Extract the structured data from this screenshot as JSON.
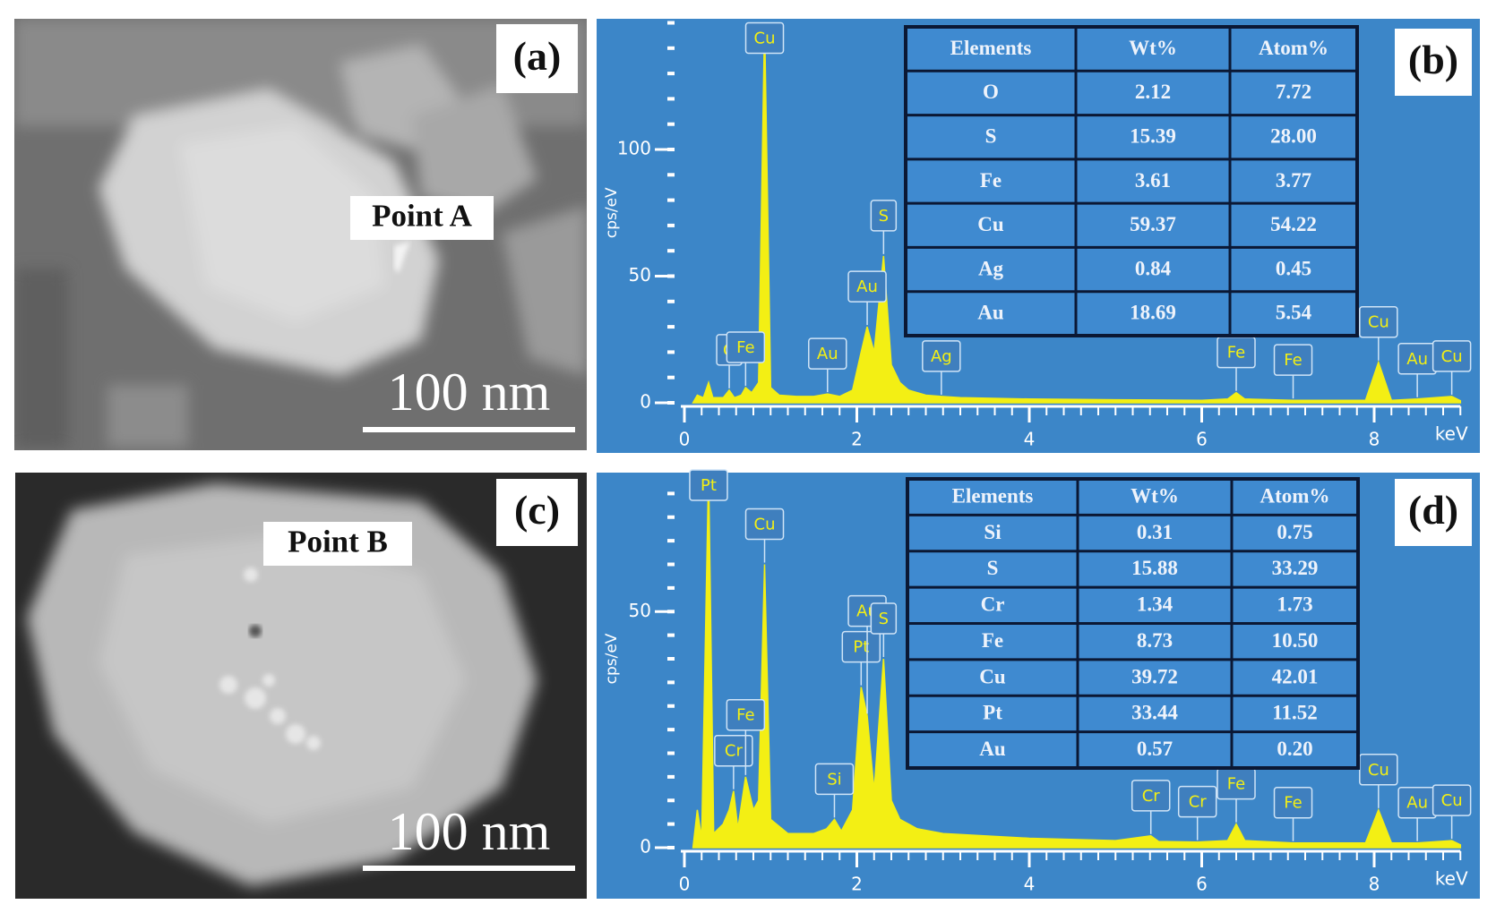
{
  "images": [
    {
      "label": "(a)",
      "point": "Point A",
      "scale_bar": "100 nm"
    },
    {
      "label": "(c)",
      "point": "Point B",
      "scale_bar": "100 nm"
    }
  ],
  "chart_data": [
    {
      "type": "area",
      "panel_label": "(b)",
      "x_label": "keV",
      "y_label": "cps/eV",
      "color": "#f3ef14",
      "xlim": [
        0,
        9
      ],
      "xticks": [
        0,
        2,
        4,
        6,
        8
      ],
      "ylim": [
        0,
        150
      ],
      "yticks": [
        0,
        50,
        100
      ],
      "x": [
        0.1,
        0.15,
        0.22,
        0.28,
        0.33,
        0.45,
        0.52,
        0.58,
        0.66,
        0.71,
        0.78,
        0.86,
        0.93,
        1.0,
        1.1,
        1.3,
        1.5,
        1.66,
        1.8,
        1.95,
        2.05,
        2.12,
        2.2,
        2.31,
        2.4,
        2.5,
        2.6,
        2.8,
        2.98,
        3.2,
        4,
        5,
        6,
        6.3,
        6.4,
        6.5,
        7.06,
        7.9,
        8.05,
        8.2,
        8.5,
        8.9,
        9
      ],
      "values": [
        0,
        3,
        2,
        8,
        2,
        2,
        5,
        2,
        3,
        6,
        4,
        8,
        150,
        6,
        3,
        2.5,
        2.5,
        3.5,
        2.5,
        5,
        20,
        30,
        20,
        58,
        15,
        8,
        5,
        3,
        2.5,
        2,
        1.5,
        1.2,
        1,
        1.5,
        4,
        1.5,
        1,
        1,
        16,
        1,
        1.5,
        2.5,
        0.8
      ],
      "peak_labels": [
        {
          "text": "O",
          "x": 0.52
        },
        {
          "text": "Fe",
          "x": 0.71
        },
        {
          "text": "Cu",
          "x": 0.93
        },
        {
          "text": "Au",
          "x": 1.66
        },
        {
          "text": "Au",
          "x": 2.12
        },
        {
          "text": "S",
          "x": 2.31
        },
        {
          "text": "Ag",
          "x": 2.98
        },
        {
          "text": "Fe",
          "x": 6.4
        },
        {
          "text": "Fe",
          "x": 7.06
        },
        {
          "text": "Cu",
          "x": 8.05
        },
        {
          "text": "Au",
          "x": 8.5
        },
        {
          "text": "Cu",
          "x": 8.9
        }
      ],
      "table": {
        "header": [
          "Elements",
          "Wt%",
          "Atom%"
        ],
        "rows": [
          [
            "O",
            "2.12",
            "7.72"
          ],
          [
            "S",
            "15.39",
            "28.00"
          ],
          [
            "Fe",
            "3.61",
            "3.77"
          ],
          [
            "Cu",
            "59.37",
            "54.22"
          ],
          [
            "Ag",
            "0.84",
            "0.45"
          ],
          [
            "Au",
            "18.69",
            "5.54"
          ]
        ]
      }
    },
    {
      "type": "area",
      "panel_label": "(d)",
      "x_label": "keV",
      "y_label": "cps/eV",
      "color": "#f3ef14",
      "xlim": [
        0,
        9
      ],
      "xticks": [
        0,
        2,
        4,
        6,
        8
      ],
      "ylim": [
        0,
        80
      ],
      "yticks": [
        0,
        50
      ],
      "x": [
        0.1,
        0.15,
        0.2,
        0.28,
        0.34,
        0.45,
        0.52,
        0.57,
        0.62,
        0.71,
        0.8,
        0.86,
        0.93,
        1.0,
        1.2,
        1.5,
        1.65,
        1.74,
        1.82,
        1.95,
        2.05,
        2.12,
        2.2,
        2.31,
        2.4,
        2.5,
        2.7,
        3,
        4,
        5,
        5.41,
        5.5,
        5.95,
        6.3,
        6.4,
        6.5,
        7.06,
        7.9,
        8.05,
        8.2,
        8.5,
        8.9,
        9
      ],
      "values": [
        0,
        8,
        2,
        80,
        3,
        5,
        8,
        12,
        4,
        15,
        8,
        10,
        60,
        6,
        3,
        3,
        4,
        6,
        3.5,
        8,
        34,
        28,
        12,
        40,
        10,
        6,
        4,
        3,
        2,
        1.5,
        2.5,
        1.3,
        1.2,
        1.5,
        5,
        1.5,
        1,
        1,
        8,
        1,
        1,
        1.5,
        0.6
      ],
      "peak_labels": [
        {
          "text": "Pt",
          "x": 0.28
        },
        {
          "text": "Cr",
          "x": 0.57
        },
        {
          "text": "Fe",
          "x": 0.71
        },
        {
          "text": "Cu",
          "x": 0.93
        },
        {
          "text": "Si",
          "x": 1.74
        },
        {
          "text": "Pt",
          "x": 2.05
        },
        {
          "text": "Au",
          "x": 2.12
        },
        {
          "text": "S",
          "x": 2.31
        },
        {
          "text": "Cr",
          "x": 5.41
        },
        {
          "text": "Cr",
          "x": 5.95
        },
        {
          "text": "Fe",
          "x": 6.4
        },
        {
          "text": "Fe",
          "x": 7.06
        },
        {
          "text": "Cu",
          "x": 8.05
        },
        {
          "text": "Au",
          "x": 8.5
        },
        {
          "text": "Cu",
          "x": 8.9
        }
      ],
      "table": {
        "header": [
          "Elements",
          "Wt%",
          "Atom%"
        ],
        "rows": [
          [
            "Si",
            "0.31",
            "0.75"
          ],
          [
            "S",
            "15.88",
            "33.29"
          ],
          [
            "Cr",
            "1.34",
            "1.73"
          ],
          [
            "Fe",
            "8.73",
            "10.50"
          ],
          [
            "Cu",
            "39.72",
            "42.01"
          ],
          [
            "Pt",
            "33.44",
            "11.52"
          ],
          [
            "Au",
            "0.57",
            "0.20"
          ]
        ]
      }
    }
  ]
}
